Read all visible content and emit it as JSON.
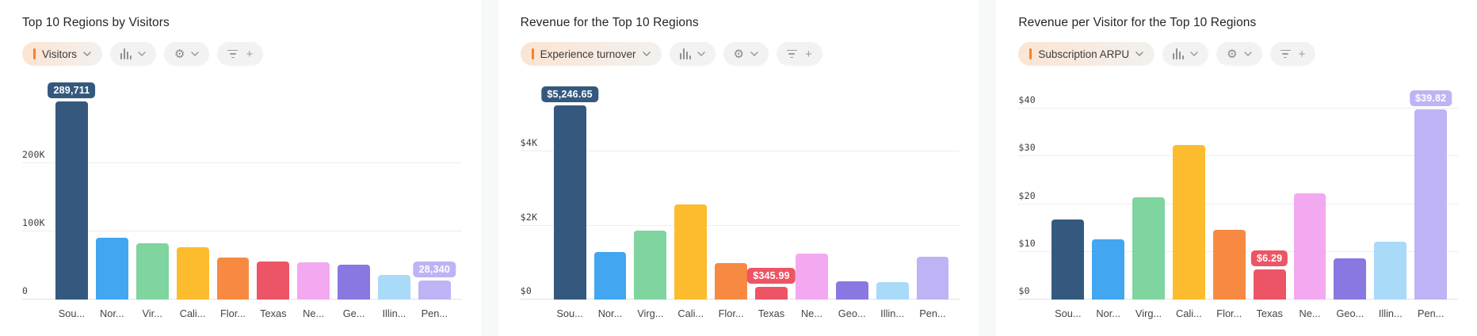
{
  "ui": {
    "accent_color": "#f5812f",
    "gridline_color": "#ededed",
    "panel_gutter_color": "#f7f9f9",
    "icons": {
      "gear_glyph": "⚙",
      "plus_glyph": "+"
    }
  },
  "chart_data": [
    {
      "type": "bar",
      "title": "Top 10 Regions by Visitors",
      "measure_label": "Visitors",
      "categories": [
        "Sou...",
        "Nor...",
        "Vir...",
        "Cali...",
        "Flor...",
        "Texas",
        "Ne...",
        "Ge...",
        "Illin...",
        "Pen..."
      ],
      "values": [
        289711,
        91000,
        82500,
        77000,
        61000,
        55500,
        54000,
        51000,
        36000,
        28340
      ],
      "bar_colors": [
        "#35597e",
        "#42a6f0",
        "#7fd49f",
        "#fcbc2d",
        "#f78a42",
        "#ec5565",
        "#f2a9f0",
        "#8a78e2",
        "#a9daf8",
        "#beb3f4"
      ],
      "value_labels_shown": [
        {
          "index": 0,
          "text": "289,711"
        },
        {
          "index": 9,
          "text": "28,340"
        }
      ],
      "yticks": [
        {
          "value": 0,
          "label": "0"
        },
        {
          "value": 100000,
          "label": "100K"
        },
        {
          "value": 200000,
          "label": "200K"
        }
      ],
      "ymax": 325000,
      "xlabel": "",
      "ylabel": "",
      "grid": true,
      "legend": false
    },
    {
      "type": "bar",
      "title": "Revenue for the Top 10 Regions",
      "measure_label": "Experience turnover",
      "categories": [
        "Sou...",
        "Nor...",
        "Virg...",
        "Cali...",
        "Flor...",
        "Texas",
        "Ne...",
        "Geo...",
        "Illin...",
        "Pen..."
      ],
      "values": [
        5246.65,
        1290,
        1870,
        2580,
        990,
        345.99,
        1250,
        495,
        475,
        1160
      ],
      "bar_colors": [
        "#35597e",
        "#42a6f0",
        "#7fd49f",
        "#fcbc2d",
        "#f78a42",
        "#ec5565",
        "#f2a9f0",
        "#8a78e2",
        "#a9daf8",
        "#beb3f4"
      ],
      "value_labels_shown": [
        {
          "index": 0,
          "text": "$5,246.65"
        },
        {
          "index": 5,
          "text": "$345.99"
        }
      ],
      "yticks": [
        {
          "value": 0,
          "label": "$0"
        },
        {
          "value": 2000,
          "label": "$2K"
        },
        {
          "value": 4000,
          "label": "$4K"
        }
      ],
      "ymax": 6000,
      "xlabel": "",
      "ylabel": "",
      "grid": true,
      "legend": false
    },
    {
      "type": "bar",
      "title": "Revenue per Visitor for the Top 10 Regions",
      "measure_label": "Subscription ARPU",
      "categories": [
        "Sou...",
        "Nor...",
        "Virg...",
        "Cali...",
        "Flor...",
        "Texas",
        "Ne...",
        "Geo...",
        "Illin...",
        "Pen..."
      ],
      "values": [
        16.8,
        12.6,
        21.5,
        32.4,
        14.6,
        6.29,
        22.3,
        8.6,
        12.2,
        39.82
      ],
      "bar_colors": [
        "#35597e",
        "#42a6f0",
        "#7fd49f",
        "#fcbc2d",
        "#f78a42",
        "#ec5565",
        "#f2a9f0",
        "#8a78e2",
        "#a9daf8",
        "#beb3f4"
      ],
      "value_labels_shown": [
        {
          "index": 5,
          "text": "$6.29"
        },
        {
          "index": 9,
          "text": "$39.82"
        }
      ],
      "yticks": [
        {
          "value": 0,
          "label": "$0"
        },
        {
          "value": 10,
          "label": "$10"
        },
        {
          "value": 20,
          "label": "$20"
        },
        {
          "value": 30,
          "label": "$30"
        },
        {
          "value": 40,
          "label": "$40"
        }
      ],
      "ymax": 46.5,
      "xlabel": "",
      "ylabel": "",
      "grid": true,
      "legend": false
    }
  ]
}
